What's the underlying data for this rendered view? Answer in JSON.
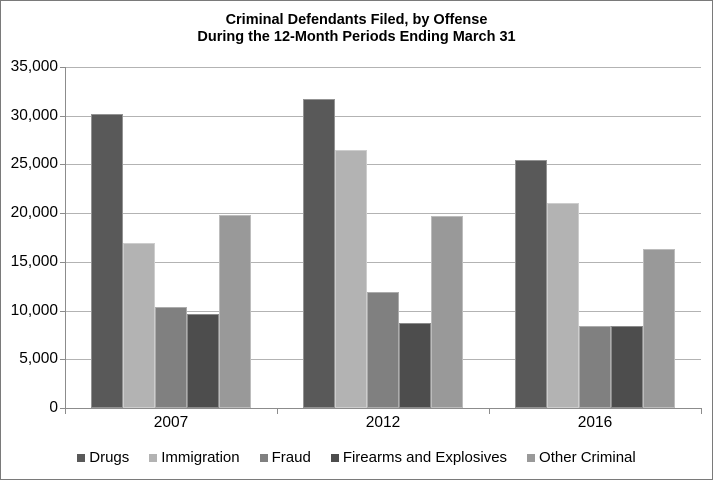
{
  "window": {
    "background_color": "#ffffff",
    "border_color": "#7a7a7a"
  },
  "chart_data": {
    "type": "bar",
    "title": "Criminal Defendants Filed, by Offense During the 12-Month Periods Ending March 31",
    "title_lines": [
      "Criminal Defendants Filed, by Offense",
      "During the 12-Month Periods Ending March 31"
    ],
    "categories": [
      "2007",
      "2012",
      "2016"
    ],
    "series": [
      {
        "name": "Drugs",
        "color": "#595959",
        "values": [
          30200,
          31700,
          25500
        ]
      },
      {
        "name": "Immigration",
        "color": "#b3b3b3",
        "values": [
          16900,
          26500,
          21000
        ]
      },
      {
        "name": "Fraud",
        "color": "#808080",
        "values": [
          10400,
          11900,
          8400
        ]
      },
      {
        "name": "Firearms and Explosives",
        "color": "#4d4d4d",
        "values": [
          9600,
          8700,
          8400
        ]
      },
      {
        "name": "Other Criminal",
        "color": "#999999",
        "values": [
          19800,
          19700,
          16300
        ]
      }
    ],
    "xlabel": "",
    "ylabel": "",
    "ylim": [
      0,
      35000
    ],
    "y_tick_step": 5000,
    "y_tick_labels": [
      "0",
      "5,000",
      "10,000",
      "15,000",
      "20,000",
      "25,000",
      "30,000",
      "35,000"
    ],
    "grid": true,
    "gridline_color": "#b3b3b3",
    "axis_color": "#8c8c8c",
    "legend_position": "bottom"
  }
}
